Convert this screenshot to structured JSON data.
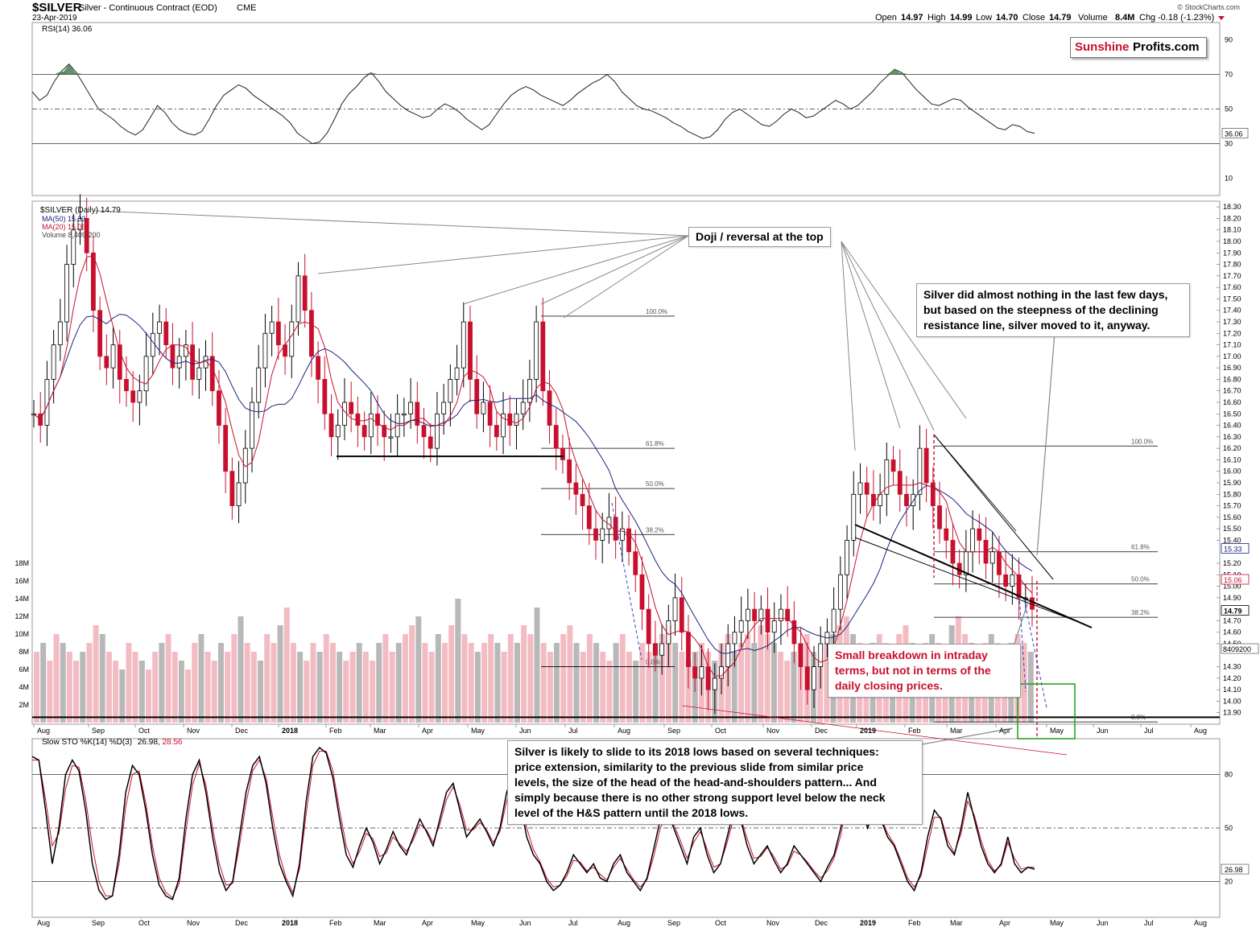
{
  "header": {
    "symbol": "$SILVER",
    "name": "Silver - Continuous Contract (EOD)",
    "exchange": "CME",
    "date": "23-Apr-2019",
    "open_label": "Open",
    "open": "14.97",
    "high_label": "High",
    "high": "14.99",
    "low_label": "Low",
    "low": "14.70",
    "close_label": "Close",
    "close": "14.79",
    "volume_label": "Volume",
    "volume": "8.4M",
    "chg_label": "Chg",
    "chg": "-0.18 (-1.23%)",
    "watermark": "© StockCharts.com"
  },
  "logo": {
    "part1": "Sunshine",
    "part2": "Profits.com"
  },
  "legend": {
    "rsi": "RSI(14) 36.06",
    "price": "$SILVER (Daily) 14.79",
    "ma50": "MA(50) 15.33",
    "ma20": "MA(20) 15.06",
    "volume": "Volume 8,409,200",
    "sto": "Slow STO %K(14) %D(3)",
    "sto_k": "26.98",
    "sto_d": "28.56"
  },
  "annotations": {
    "doji": "Doji / reversal at the top",
    "resistance": [
      "Silver did almost nothing in the last few days,",
      "but based on the steepness of the declining",
      "resistance line, silver moved to it, anyway."
    ],
    "breakdown": [
      "Small breakdown in intraday",
      "terms, but not in terms of the",
      "daily closing prices."
    ],
    "slide": [
      "Silver is likely to slide to its 2018 lows based on several techniques:",
      "price extension, similarity to the previous slide from similar price",
      "levels, the size of the head of the head-and-shoulders pattern... And",
      "simply because there is no other strong support level below the neck",
      "level of the H&S pattern until the 2018 lows."
    ]
  },
  "colors": {
    "up": "#000000",
    "down": "#c8102e",
    "ma50": "#1a237e",
    "ma20": "#c8102e",
    "vol_up": "#b0b0b0",
    "vol_down": "#f2b5bd",
    "rsi_overbought": "#4e7d4e",
    "box": "#1a9e1a",
    "fib": "#000000"
  },
  "chart_data": [
    {
      "type": "line",
      "title": "RSI(14)",
      "ylim": [
        0,
        100
      ],
      "y_ticks": [
        "90",
        "70",
        "50",
        "30",
        "10"
      ],
      "y_tick_values": [
        90,
        70,
        50,
        30,
        10
      ],
      "last_value_label": "36.06",
      "series": [
        {
          "name": "RSI(14)",
          "values": [
            60,
            55,
            58,
            66,
            72,
            76,
            71,
            64,
            57,
            50,
            47,
            44,
            40,
            37,
            35,
            38,
            45,
            52,
            48,
            42,
            38,
            36,
            35,
            37,
            44,
            52,
            58,
            61,
            64,
            62,
            58,
            55,
            52,
            49,
            46,
            42,
            36,
            33,
            30,
            31,
            36,
            44,
            53,
            59,
            63,
            68,
            71,
            66,
            60,
            56,
            52,
            49,
            47,
            45,
            46,
            50,
            53,
            51,
            48,
            44,
            41,
            38,
            41,
            47,
            53,
            58,
            61,
            63,
            61,
            58,
            56,
            54,
            52,
            55,
            59,
            62,
            65,
            67,
            70,
            66,
            60,
            56,
            52,
            50,
            49,
            47,
            45,
            42,
            40,
            37,
            35,
            33,
            34,
            38,
            44,
            48,
            50,
            47,
            44,
            41,
            40,
            43,
            47,
            50,
            48,
            45,
            46,
            49,
            52,
            55,
            53,
            50,
            52,
            56,
            60,
            65,
            69,
            73,
            71,
            66,
            61,
            57,
            53,
            52,
            54,
            56,
            55,
            51,
            48,
            45,
            42,
            39,
            38,
            41,
            40,
            37,
            36
          ]
        }
      ]
    },
    {
      "type": "candlestick",
      "title": "$SILVER (Daily)",
      "ylim": [
        13.8,
        18.35
      ],
      "y_ticks": [
        "18.30",
        "18.20",
        "18.10",
        "18.00",
        "17.90",
        "17.80",
        "17.70",
        "17.60",
        "17.50",
        "17.40",
        "17.30",
        "17.20",
        "17.10",
        "17.00",
        "16.90",
        "16.80",
        "16.70",
        "16.60",
        "16.50",
        "16.40",
        "16.30",
        "16.20",
        "16.10",
        "16.00",
        "15.90",
        "15.80",
        "15.70",
        "15.60",
        "15.50",
        "15.40",
        "15.20",
        "15.10",
        "15.00",
        "14.90",
        "14.70",
        "14.60",
        "14.50",
        "14.30",
        "14.20",
        "14.10",
        "14.00",
        "13.90"
      ],
      "y_tick_values": [
        18.3,
        18.2,
        18.1,
        18.0,
        17.9,
        17.8,
        17.7,
        17.6,
        17.5,
        17.4,
        17.3,
        17.2,
        17.1,
        17.0,
        16.9,
        16.8,
        16.7,
        16.6,
        16.5,
        16.4,
        16.3,
        16.2,
        16.1,
        16.0,
        15.9,
        15.8,
        15.7,
        15.6,
        15.5,
        15.4,
        15.2,
        15.1,
        15.0,
        14.9,
        14.7,
        14.6,
        14.5,
        14.3,
        14.2,
        14.1,
        14.0,
        13.9
      ],
      "value_flags": [
        "15.33",
        "15.06",
        "14.79",
        "8409200"
      ],
      "x_ticks": [
        "Aug",
        "Sep",
        "Oct",
        "Nov",
        "Dec",
        "2018",
        "Feb",
        "Mar",
        "Apr",
        "May",
        "Jun",
        "Jul",
        "Aug",
        "Sep",
        "Oct",
        "Nov",
        "Dec",
        "2019",
        "Feb",
        "Mar",
        "Apr",
        "May",
        "Jun",
        "Jul",
        "Aug"
      ],
      "closes": [
        16.5,
        16.4,
        16.8,
        17.1,
        17.3,
        17.8,
        18.1,
        18.2,
        17.9,
        17.4,
        17.0,
        16.9,
        17.1,
        16.8,
        16.7,
        16.6,
        16.7,
        17.0,
        17.2,
        17.3,
        17.1,
        16.9,
        17.0,
        17.1,
        16.8,
        16.9,
        17.0,
        16.7,
        16.4,
        16.0,
        15.7,
        15.9,
        16.2,
        16.6,
        16.9,
        17.2,
        17.3,
        17.1,
        17.0,
        17.3,
        17.7,
        17.4,
        17.0,
        16.8,
        16.5,
        16.3,
        16.4,
        16.6,
        16.5,
        16.4,
        16.3,
        16.5,
        16.4,
        16.3,
        16.3,
        16.5,
        16.5,
        16.6,
        16.4,
        16.3,
        16.2,
        16.5,
        16.6,
        16.8,
        16.9,
        17.3,
        16.8,
        16.5,
        16.6,
        16.4,
        16.3,
        16.5,
        16.4,
        16.5,
        16.6,
        16.8,
        17.3,
        16.7,
        16.4,
        16.2,
        16.1,
        15.9,
        15.8,
        15.7,
        15.5,
        15.4,
        15.5,
        15.6,
        15.4,
        15.5,
        15.3,
        15.1,
        14.8,
        14.5,
        14.4,
        14.5,
        14.7,
        14.9,
        14.6,
        14.3,
        14.2,
        14.3,
        14.1,
        14.2,
        14.3,
        14.5,
        14.6,
        14.7,
        14.8,
        14.7,
        14.8,
        14.6,
        14.7,
        14.8,
        14.7,
        14.5,
        14.3,
        14.1,
        14.3,
        14.5,
        14.6,
        14.8,
        15.1,
        15.4,
        15.8,
        15.9,
        15.8,
        15.7,
        15.8,
        16.1,
        16.0,
        15.8,
        15.7,
        15.8,
        16.2,
        15.9,
        15.7,
        15.5,
        15.4,
        15.2,
        15.1,
        15.3,
        15.5,
        15.4,
        15.2,
        15.3,
        15.1,
        15.0,
        15.1,
        14.9,
        14.9,
        14.8
      ],
      "ma50_label": "MA(50)",
      "ma20_label": "MA(20)",
      "fib_left": [
        {
          "label": "100.0%",
          "value": 17.35
        },
        {
          "label": "61.8%",
          "value": 16.2
        },
        {
          "label": "50.0%",
          "value": 15.85
        },
        {
          "label": "38.2%",
          "value": 15.45
        },
        {
          "label": "0.0%",
          "value": 14.3
        }
      ],
      "fib_right": [
        {
          "label": "100.0%",
          "value": 16.22
        },
        {
          "label": "61.8%",
          "value": 15.3
        },
        {
          "label": "50.0%",
          "value": 15.02
        },
        {
          "label": "38.2%",
          "value": 14.73
        },
        {
          "label": "0.0%",
          "value": 13.82
        }
      ],
      "support_2018": 13.86,
      "support_2017": 16.13
    },
    {
      "type": "bar",
      "title": "Volume",
      "y_ticks": [
        "18M",
        "16M",
        "14M",
        "12M",
        "10M",
        "8M",
        "6M",
        "4M",
        "2M"
      ],
      "y_tick_values": [
        18,
        16,
        14,
        12,
        10,
        8,
        6,
        4,
        2
      ],
      "values": [
        8,
        9,
        7,
        10,
        9,
        8,
        7,
        8,
        9,
        11,
        10,
        8,
        7,
        6,
        9,
        8,
        7,
        6,
        8,
        9,
        10,
        8,
        7,
        6,
        9,
        10,
        8,
        7,
        9,
        8,
        10,
        12,
        9,
        8,
        7,
        10,
        9,
        11,
        13,
        9,
        8,
        7,
        9,
        8,
        10,
        9,
        8,
        7,
        8,
        9,
        8,
        7,
        9,
        10,
        8,
        9,
        10,
        11,
        12,
        9,
        8,
        10,
        9,
        11,
        14,
        10,
        9,
        8,
        9,
        10,
        9,
        8,
        10,
        9,
        11,
        10,
        13,
        9,
        8,
        9,
        10,
        11,
        9,
        8,
        10,
        9,
        8,
        7,
        9,
        10,
        8,
        7,
        9,
        8,
        9,
        10,
        11,
        9,
        8,
        7,
        8,
        9,
        8,
        7,
        9,
        10,
        8,
        9,
        10,
        9,
        11,
        10,
        9,
        8,
        7,
        8,
        9,
        10,
        8,
        7,
        9,
        10,
        11,
        12,
        10,
        9,
        8,
        9,
        10,
        9,
        8,
        10,
        11,
        9,
        8,
        9,
        10,
        9,
        8,
        11,
        12,
        10,
        9,
        8,
        9,
        10,
        9,
        8,
        9,
        10,
        9,
        8
      ]
    },
    {
      "type": "line",
      "title": "Slow STO %K(14) %D(3)",
      "ylim": [
        0,
        100
      ],
      "y_ticks": [
        "80",
        "50",
        "20"
      ],
      "y_tick_values": [
        80,
        50,
        20
      ],
      "x_ticks": [
        "Aug",
        "Sep",
        "Oct",
        "Nov",
        "Dec",
        "2018",
        "Feb",
        "Mar",
        "Apr",
        "May",
        "Jun",
        "Jul",
        "Aug",
        "Sep",
        "Oct",
        "Nov",
        "Dec",
        "2019",
        "Feb",
        "Mar",
        "Apr",
        "May",
        "Jun",
        "Jul",
        "Aug"
      ],
      "series": [
        {
          "name": "%K",
          "values": [
            90,
            88,
            60,
            30,
            50,
            80,
            88,
            82,
            60,
            30,
            15,
            10,
            12,
            35,
            70,
            85,
            80,
            60,
            35,
            18,
            12,
            10,
            22,
            55,
            80,
            88,
            70,
            45,
            25,
            15,
            20,
            45,
            70,
            85,
            90,
            75,
            50,
            30,
            20,
            12,
            30,
            65,
            90,
            95,
            92,
            78,
            55,
            35,
            28,
            40,
            50,
            42,
            30,
            38,
            48,
            40,
            35,
            45,
            55,
            48,
            40,
            55,
            70,
            75,
            60,
            45,
            50,
            55,
            48,
            40,
            50,
            70,
            80,
            65,
            45,
            35,
            30,
            20,
            15,
            18,
            25,
            35,
            30,
            25,
            30,
            22,
            20,
            30,
            35,
            25,
            20,
            15,
            22,
            38,
            55,
            60,
            50,
            40,
            30,
            45,
            50,
            35,
            25,
            30,
            45,
            60,
            55,
            40,
            30,
            35,
            40,
            32,
            25,
            30,
            40,
            35,
            30,
            25,
            20,
            28,
            35,
            50,
            70,
            75,
            65,
            50,
            60,
            55,
            45,
            40,
            30,
            20,
            15,
            25,
            45,
            60,
            55,
            40,
            35,
            50,
            70,
            55,
            40,
            30,
            25,
            30,
            45,
            30,
            25,
            28,
            27
          ]
        },
        {
          "name": "%D",
          "values": [
            88,
            88,
            66,
            40,
            47,
            72,
            85,
            84,
            66,
            40,
            20,
            12,
            12,
            30,
            62,
            80,
            82,
            64,
            40,
            22,
            14,
            11,
            19,
            48,
            74,
            86,
            74,
            50,
            30,
            18,
            19,
            40,
            64,
            82,
            88,
            78,
            56,
            35,
            22,
            14,
            27,
            58,
            85,
            93,
            93,
            82,
            60,
            40,
            30,
            37,
            47,
            44,
            34,
            36,
            45,
            41,
            37,
            43,
            52,
            49,
            42,
            52,
            66,
            73,
            63,
            49,
            49,
            53,
            49,
            42,
            48,
            65,
            77,
            68,
            50,
            38,
            31,
            22,
            17,
            18,
            23,
            32,
            31,
            26,
            28,
            24,
            21,
            28,
            33,
            27,
            21,
            17,
            21,
            34,
            50,
            58,
            52,
            43,
            33,
            42,
            48,
            38,
            28,
            30,
            42,
            56,
            56,
            44,
            33,
            34,
            39,
            34,
            27,
            29,
            37,
            35,
            31,
            26,
            22,
            26,
            33,
            46,
            65,
            73,
            67,
            53,
            58,
            56,
            47,
            41,
            32,
            22,
            17,
            23,
            40,
            56,
            56,
            43,
            36,
            47,
            65,
            57,
            43,
            32,
            26,
            29,
            42,
            33,
            27,
            28,
            28
          ]
        }
      ]
    }
  ]
}
